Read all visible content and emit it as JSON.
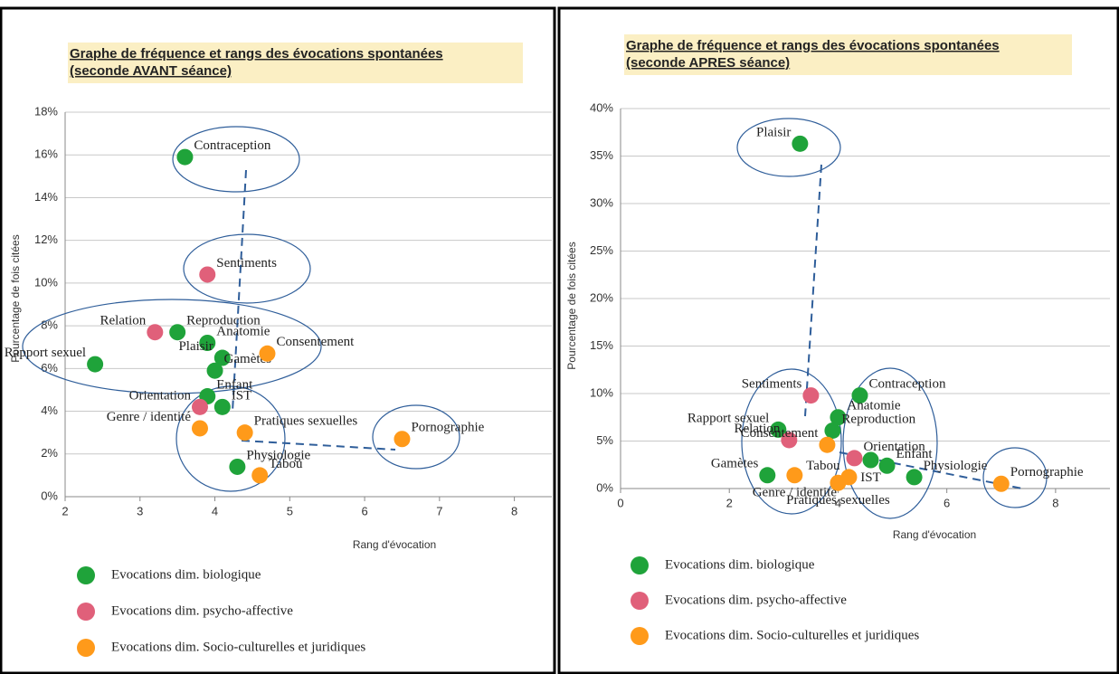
{
  "chart_data": [
    {
      "type": "scatter",
      "title": "Graphe de fréquence et rangs des évocations spontanées",
      "subtitle": " (seconde AVANT séance)",
      "x_label": "Rang d'évocation",
      "y_label": "Pourcentage de fois citées",
      "xlim": [
        2,
        8.5
      ],
      "xticks": [
        2,
        3,
        4,
        5,
        6,
        7,
        8
      ],
      "ylim": [
        0,
        18
      ],
      "yticks": [
        {
          "value": 0,
          "label": "0%"
        },
        {
          "value": 2,
          "label": "2%"
        },
        {
          "value": 4,
          "label": "4%"
        },
        {
          "value": 6,
          "label": "6%"
        },
        {
          "value": 8,
          "label": "8%"
        },
        {
          "value": 10,
          "label": "10%"
        },
        {
          "value": 12,
          "label": "12%"
        },
        {
          "value": 14,
          "label": "14%"
        },
        {
          "value": 16,
          "label": "16%"
        },
        {
          "value": 18,
          "label": "18%"
        }
      ],
      "grid": true,
      "series": [
        {
          "name": "Evocations dim. biologique",
          "color": "#1fa33a",
          "labels": [
            "Contraception",
            "Reproduction",
            "Rapport sexuel",
            "Anatomie",
            "Plaisir",
            "Gamètes",
            "Enfant",
            "IST",
            "Physiologie"
          ],
          "x": [
            3.6,
            3.5,
            2.4,
            3.9,
            4.1,
            4.0,
            3.9,
            4.1,
            4.3
          ],
          "values": [
            15.9,
            7.7,
            6.2,
            7.2,
            6.5,
            5.9,
            4.7,
            4.2,
            1.4
          ]
        },
        {
          "name": "Evocations dim. psycho-affective",
          "color": "#e0607a",
          "labels": [
            "Relation",
            "Sentiments",
            "Orientation"
          ],
          "x": [
            3.2,
            3.9,
            3.8
          ],
          "values": [
            7.7,
            10.4,
            4.2
          ]
        },
        {
          "name": "Evocations dim. Socio-culturelles et juridiques",
          "color": "#ff9a1a",
          "labels": [
            "Consentement",
            "Genre / identité",
            "Pratiques sexuelles",
            "Pornographie",
            "Tabou"
          ],
          "x": [
            4.7,
            3.8,
            4.4,
            6.5,
            4.6
          ],
          "values": [
            6.7,
            3.2,
            3.0,
            2.7,
            1.0
          ]
        }
      ]
    },
    {
      "type": "scatter",
      "title": "Graphe de fréquence et rangs des évocations spontanées",
      "subtitle": " (seconde APRES séance)",
      "x_label": "Rang d'évocation",
      "y_label": "Pourcentage de fois citées",
      "xlim": [
        0,
        9
      ],
      "xticks": [
        0,
        2,
        4,
        6,
        8
      ],
      "ylim": [
        0,
        40
      ],
      "yticks": [
        {
          "value": 0,
          "label": "0%"
        },
        {
          "value": 5,
          "label": "5%"
        },
        {
          "value": 10,
          "label": "10%"
        },
        {
          "value": 15,
          "label": "15%"
        },
        {
          "value": 20,
          "label": "20%"
        },
        {
          "value": 25,
          "label": "25%"
        },
        {
          "value": 30,
          "label": "30%"
        },
        {
          "value": 35,
          "label": "35%"
        },
        {
          "value": 40,
          "label": "40%"
        }
      ],
      "grid": true,
      "series": [
        {
          "name": "Evocations dim. biologique",
          "color": "#1fa33a",
          "labels": [
            "Plaisir",
            "Contraception",
            "Anatomie",
            "Rapport sexuel",
            "Reproduction",
            "IST",
            "Enfant",
            "Physiologie",
            "Gamètes"
          ],
          "x": [
            3.3,
            4.4,
            4.0,
            2.9,
            3.9,
            4.6,
            4.9,
            5.4,
            2.7
          ],
          "values": [
            36.3,
            9.8,
            7.5,
            6.2,
            6.1,
            3.0,
            2.4,
            1.2,
            1.4
          ]
        },
        {
          "name": "Evocations dim. psycho-affective",
          "color": "#e0607a",
          "labels": [
            "Sentiments",
            "Relation",
            "Orientation"
          ],
          "x": [
            3.5,
            3.1,
            4.3
          ],
          "values": [
            9.8,
            5.1,
            3.2
          ]
        },
        {
          "name": "Evocations dim. Socio-culturelles et juridiques",
          "color": "#ff9a1a",
          "labels": [
            "Consentement",
            "Pornographie",
            "Genre / identité",
            "Tabou",
            "Pratiques sexuelles"
          ],
          "x": [
            3.8,
            7.0,
            3.2,
            4.2,
            4.0
          ],
          "values": [
            4.6,
            0.5,
            1.4,
            1.2,
            0.6
          ]
        }
      ]
    }
  ]
}
